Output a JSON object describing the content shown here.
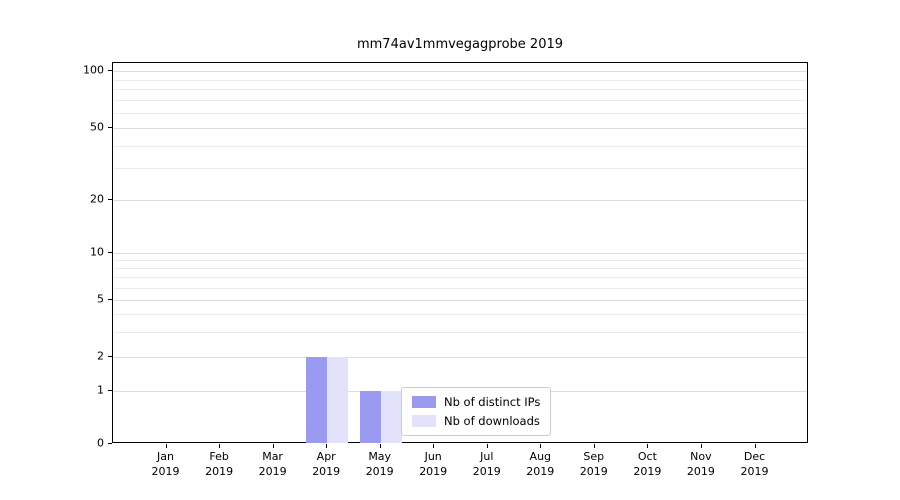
{
  "chart_data": {
    "type": "bar",
    "title": "mm74av1mmvegagprobe 2019",
    "categories": [
      "Jan",
      "Feb",
      "Mar",
      "Apr",
      "May",
      "Jun",
      "Jul",
      "Aug",
      "Sep",
      "Oct",
      "Nov",
      "Dec"
    ],
    "year_label": "2019",
    "series": [
      {
        "name": "Nb of distinct IPs",
        "color": "#9a9af0",
        "values": [
          0,
          0,
          0,
          2,
          1,
          0,
          0,
          0,
          0,
          0,
          0,
          0
        ]
      },
      {
        "name": "Nb of downloads",
        "color": "#e2e2fb",
        "values": [
          0,
          0,
          0,
          2,
          1,
          0,
          0,
          0,
          0,
          0,
          0,
          0
        ]
      }
    ],
    "yticks": [
      0,
      1,
      2,
      5,
      10,
      20,
      50,
      100
    ],
    "y_minor_gridlines": [
      3,
      4,
      6,
      7,
      8,
      9,
      30,
      40,
      60,
      70,
      80,
      90
    ],
    "ylim": [
      0,
      110
    ],
    "yscale": "symlog",
    "grid": "horizontal",
    "legend_position": "inside lower-center-right"
  }
}
